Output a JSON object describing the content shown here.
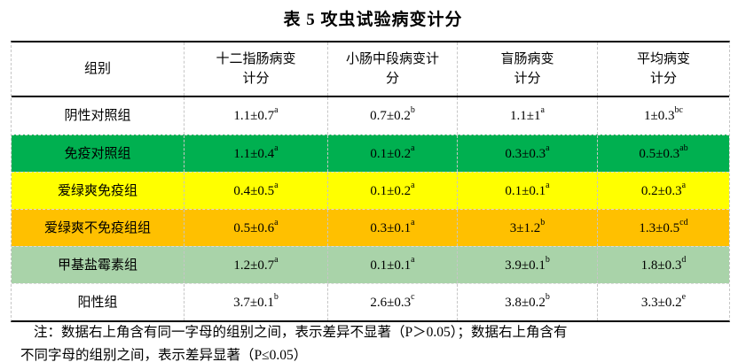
{
  "title": "表 5  攻虫试验病变计分",
  "colors": {
    "row_white": "#FFFFFF",
    "row_green": "#00B050",
    "row_yellow": "#FFFF00",
    "row_orange": "#FFC000",
    "row_light_green": "#A9D3A9",
    "border_solid": "#000000",
    "border_dashed": "#C6C6C6"
  },
  "table": {
    "headers": [
      {
        "line1": "组别",
        "line2": ""
      },
      {
        "line1": "十二指肠病变",
        "line2": "计分"
      },
      {
        "line1": "小肠中段病变计",
        "line2": "分"
      },
      {
        "line1": "盲肠病变",
        "line2": "计分"
      },
      {
        "line1": "平均病变",
        "line2": "计分"
      }
    ],
    "rows": [
      {
        "group": "阴性对照组",
        "bg": "#FFFFFF",
        "cells": [
          {
            "value": "1.1±0.7",
            "sup": "a"
          },
          {
            "value": "0.7±0.2",
            "sup": "b"
          },
          {
            "value": "1.1±1",
            "sup": "a"
          },
          {
            "value": "1±0.3",
            "sup": "bc"
          }
        ]
      },
      {
        "group": "免疫对照组",
        "bg": "#00B050",
        "cells": [
          {
            "value": "1.1±0.4",
            "sup": "a"
          },
          {
            "value": "0.1±0.2",
            "sup": "a"
          },
          {
            "value": "0.3±0.3",
            "sup": "a"
          },
          {
            "value": "0.5±0.3",
            "sup": "ab"
          }
        ]
      },
      {
        "group": "爱绿爽免疫组",
        "bg": "#FFFF00",
        "cells": [
          {
            "value": "0.4±0.5",
            "sup": "a"
          },
          {
            "value": "0.1±0.2",
            "sup": "a"
          },
          {
            "value": "0.1±0.1",
            "sup": "a"
          },
          {
            "value": "0.2±0.3",
            "sup": "a"
          }
        ]
      },
      {
        "group": "爱绿爽不免疫组组",
        "bg": "#FFC000",
        "cells": [
          {
            "value": "0.5±0.6",
            "sup": "a"
          },
          {
            "value": "0.3±0.1",
            "sup": "a"
          },
          {
            "value": "3±1.2",
            "sup": "b"
          },
          {
            "value": "1.3±0.5",
            "sup": "cd"
          }
        ]
      },
      {
        "group": "甲基盐霉素组",
        "bg": "#A9D3A9",
        "cells": [
          {
            "value": "1.2±0.7",
            "sup": "a"
          },
          {
            "value": "0.1±0.1",
            "sup": "a"
          },
          {
            "value": "3.9±0.1",
            "sup": "b"
          },
          {
            "value": "1.8±0.3",
            "sup": "d"
          }
        ]
      },
      {
        "group": "阳性组",
        "bg": "#FFFFFF",
        "cells": [
          {
            "value": "3.7±0.1",
            "sup": "b"
          },
          {
            "value": "2.6±0.3",
            "sup": "c"
          },
          {
            "value": "3.8±0.2",
            "sup": "b"
          },
          {
            "value": "3.3±0.2",
            "sup": "e"
          }
        ]
      }
    ]
  },
  "note": {
    "line1": "注：数据右上角含有同一字母的组别之间，表示差异不显著（P＞0.05）；数据右上角含有",
    "line2": "不同字母的组别之间，表示差异显著（P≤0.05）"
  }
}
